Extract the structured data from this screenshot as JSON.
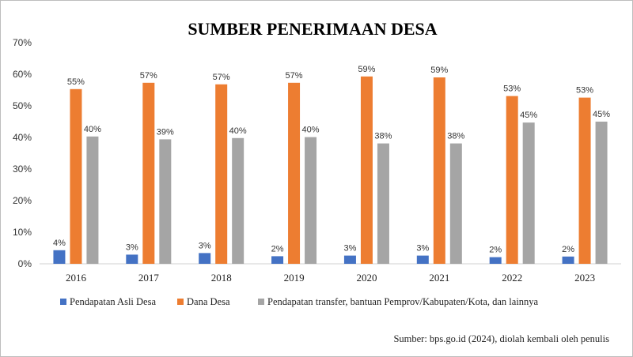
{
  "chart_data": {
    "type": "bar",
    "title": "SUMBER PENERIMAAN DESA",
    "categories": [
      "2016",
      "2017",
      "2018",
      "2019",
      "2020",
      "2021",
      "2022",
      "2023"
    ],
    "series": [
      {
        "name": "Pendapatan Asli Desa",
        "color": "#4472C4",
        "values": [
          4.3,
          2.9,
          3.4,
          2.4,
          2.6,
          2.6,
          2.1,
          2.3
        ],
        "labels": [
          "4%",
          "3%",
          "3%",
          "2%",
          "3%",
          "3%",
          "2%",
          "2%"
        ]
      },
      {
        "name": "Dana Desa",
        "color": "#ED7D31",
        "values": [
          55.3,
          57.3,
          56.8,
          57.3,
          59.3,
          59.0,
          53.1,
          52.6
        ],
        "labels": [
          "55%",
          "57%",
          "57%",
          "57%",
          "59%",
          "59%",
          "53%",
          "53%"
        ]
      },
      {
        "name": "Pendapatan transfer, bantuan Pemprov/Kabupaten/Kota, dan lainnya",
        "color": "#A5A5A5",
        "values": [
          40.3,
          39.4,
          39.8,
          40.1,
          38.1,
          38.1,
          44.7,
          45.0
        ],
        "labels": [
          "40%",
          "39%",
          "40%",
          "40%",
          "38%",
          "38%",
          "45%",
          "45%"
        ]
      }
    ],
    "ylim": [
      0,
      70
    ],
    "yticks": [
      "0%",
      "10%",
      "20%",
      "30%",
      "40%",
      "50%",
      "60%",
      "70%"
    ],
    "legend_position": "bottom",
    "grid": false
  },
  "source_note": "Sumber: bps.go.id (2024), diolah kembali oleh penulis"
}
